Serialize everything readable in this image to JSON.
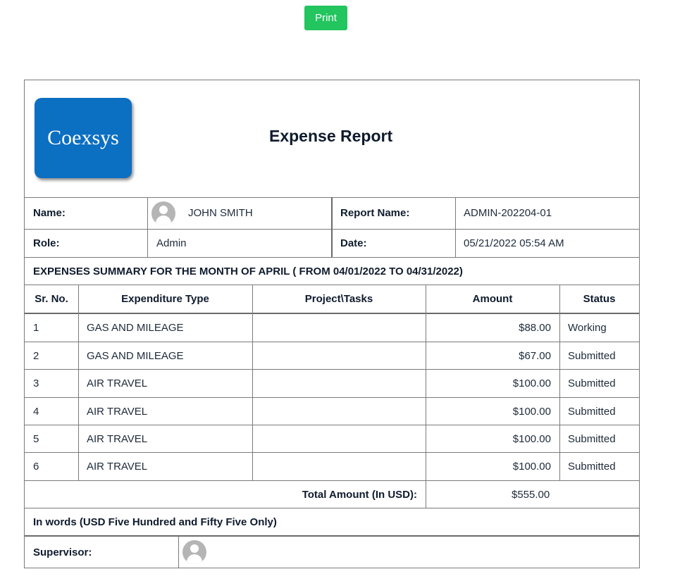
{
  "toolbar": {
    "print_label": "Print"
  },
  "header": {
    "logo_text": "Coexsys",
    "title": "Expense Report"
  },
  "info": {
    "name_label": "Name:",
    "name_value": "JOHN SMITH",
    "report_name_label": "Report Name:",
    "report_name_value": "ADMIN-202204-01",
    "role_label": "Role:",
    "role_value": "Admin",
    "date_label": "Date:",
    "date_value": "05/21/2022 05:54 AM"
  },
  "summary_title": "EXPENSES SUMMARY FOR THE MONTH OF APRIL ( FROM 04/01/2022 TO 04/31/2022)",
  "table": {
    "headers": [
      "Sr. No.",
      "Expenditure Type",
      "Project\\Tasks",
      "Amount",
      "Status"
    ],
    "rows": [
      {
        "sr": "1",
        "type": "GAS AND MILEAGE",
        "project": "",
        "amount": "$88.00",
        "status": "Working"
      },
      {
        "sr": "2",
        "type": "GAS AND MILEAGE",
        "project": "",
        "amount": "$67.00",
        "status": "Submitted"
      },
      {
        "sr": "3",
        "type": "AIR TRAVEL",
        "project": "",
        "amount": "$100.00",
        "status": "Submitted"
      },
      {
        "sr": "4",
        "type": "AIR TRAVEL",
        "project": "",
        "amount": "$100.00",
        "status": "Submitted"
      },
      {
        "sr": "5",
        "type": "AIR TRAVEL",
        "project": "",
        "amount": "$100.00",
        "status": "Submitted"
      },
      {
        "sr": "6",
        "type": "AIR TRAVEL",
        "project": "",
        "amount": "$100.00",
        "status": "Submitted"
      }
    ],
    "total_label": "Total Amount (In USD):",
    "total_value": "$555.00"
  },
  "in_words": "In words (USD Five Hundred and Fifty Five Only)",
  "supervisor_label": "Supervisor:",
  "icons": {
    "avatar": "user-avatar-icon"
  },
  "colors": {
    "print_button": "#22c55e",
    "logo_bg": "#0b6fc2"
  }
}
